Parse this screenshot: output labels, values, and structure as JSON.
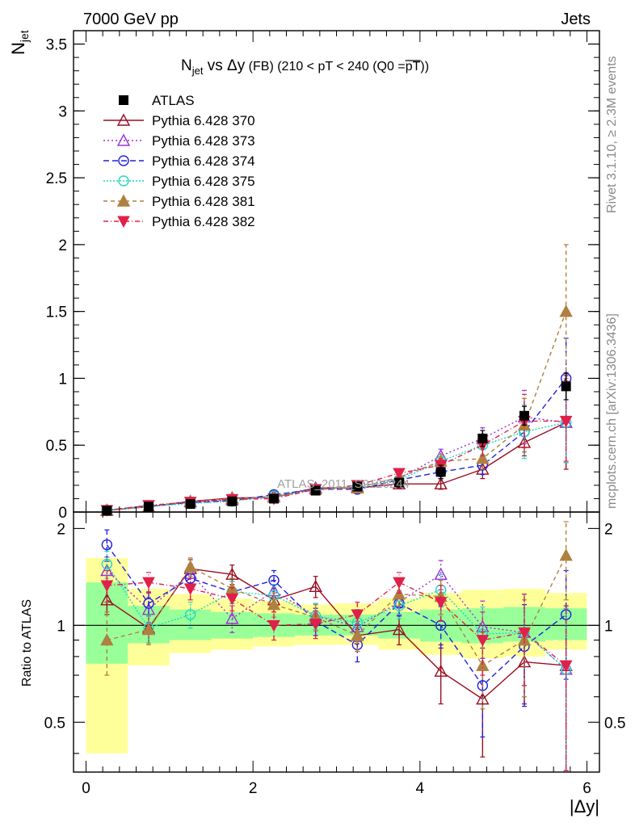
{
  "header": {
    "left": "7000 GeV pp",
    "right": "Jets"
  },
  "side_labels": {
    "rivet": "Rivet 3.1.10, ≥ 2.3M events",
    "mcplots": "mcplots.cern.ch [arXiv:1306.3436]"
  },
  "watermark": "ATLAS_2011_S9126244",
  "colors": {
    "atlas": "#000000",
    "p370": "#990f22",
    "p373": "#9b30d8",
    "p374": "#2020dd",
    "p375": "#20d8c0",
    "p381": "#b08040",
    "p382": "#e0204a",
    "band_inner": "#99ff99",
    "band_outer": "#ffff99"
  },
  "chart_data": [
    {
      "type": "line",
      "panel": "main",
      "title_parts": {
        "prefix": "N",
        "sub": "jet",
        "mid": " vs Δy",
        "detail": " (FB)  (210 < pT < 240 (Q0 =",
        "over": "pT",
        "close": "))"
      },
      "ylabel": {
        "main": "N",
        "sub": "jet"
      },
      "xlim": [
        -0.15,
        6.15
      ],
      "ylim": [
        0,
        3.6
      ],
      "yticks": [
        "0",
        "0.5",
        "1",
        "1.5",
        "2",
        "2.5",
        "3",
        "3.5"
      ],
      "x": [
        0.25,
        0.75,
        1.25,
        1.75,
        2.25,
        2.75,
        3.25,
        3.75,
        4.25,
        4.75,
        5.25,
        5.75
      ],
      "series": [
        {
          "name": "ATLAS",
          "key": "atlas",
          "marker": "square",
          "values": [
            0.01,
            0.04,
            0.06,
            0.08,
            0.1,
            0.16,
            0.19,
            0.22,
            0.3,
            0.55,
            0.72,
            0.94
          ],
          "errors": [
            0.005,
            0.01,
            0.01,
            0.01,
            0.01,
            0.02,
            0.02,
            0.03,
            0.05,
            0.06,
            0.07,
            0.1
          ]
        },
        {
          "name": "Pythia 6.428 370",
          "key": "p370",
          "marker": "triangle-open",
          "dash": "",
          "values": [
            0.013,
            0.04,
            0.08,
            0.105,
            0.11,
            0.18,
            0.18,
            0.21,
            0.21,
            0.32,
            0.52,
            0.67
          ],
          "errors": [
            0.005,
            0.01,
            0.01,
            0.01,
            0.02,
            0.02,
            0.02,
            0.03,
            0.04,
            0.07,
            0.1,
            0.35
          ]
        },
        {
          "name": "Pythia 6.428 373",
          "key": "p373",
          "marker": "triangle-open",
          "dash": "2,3",
          "values": [
            0.012,
            0.04,
            0.075,
            0.09,
            0.12,
            0.18,
            0.19,
            0.25,
            0.42,
            0.55,
            0.71,
            0.67
          ],
          "errors": [
            0.005,
            0.01,
            0.01,
            0.01,
            0.02,
            0.02,
            0.02,
            0.03,
            0.05,
            0.08,
            0.2,
            0.3
          ]
        },
        {
          "name": "Pythia 6.428 374",
          "key": "p374",
          "marker": "circle-open",
          "dash": "7,4",
          "values": [
            0.015,
            0.045,
            0.07,
            0.085,
            0.13,
            0.17,
            0.17,
            0.24,
            0.3,
            0.35,
            0.6,
            1.0
          ],
          "errors": [
            0.005,
            0.01,
            0.01,
            0.01,
            0.02,
            0.02,
            0.02,
            0.03,
            0.05,
            0.07,
            0.15,
            0.3
          ]
        },
        {
          "name": "Pythia 6.428 375",
          "key": "p375",
          "marker": "circle-open",
          "dash": "2,2",
          "values": [
            0.013,
            0.04,
            0.065,
            0.08,
            0.12,
            0.17,
            0.19,
            0.24,
            0.38,
            0.5,
            0.6,
            0.67
          ],
          "errors": [
            0.005,
            0.01,
            0.01,
            0.01,
            0.02,
            0.02,
            0.02,
            0.03,
            0.05,
            0.07,
            0.2,
            0.3
          ]
        },
        {
          "name": "Pythia 6.428 381",
          "key": "p381",
          "marker": "triangle",
          "dash": "5,4",
          "values": [
            0.01,
            0.04,
            0.08,
            0.1,
            0.11,
            0.17,
            0.18,
            0.26,
            0.38,
            0.4,
            0.65,
            1.5
          ],
          "errors": [
            0.005,
            0.01,
            0.01,
            0.01,
            0.02,
            0.02,
            0.02,
            0.03,
            0.05,
            0.08,
            0.2,
            0.5
          ]
        },
        {
          "name": "Pythia 6.428 382",
          "key": "p382",
          "marker": "triangle-down",
          "dash": "6,3,1,3",
          "values": [
            0.013,
            0.05,
            0.075,
            0.095,
            0.1,
            0.17,
            0.2,
            0.29,
            0.35,
            0.5,
            0.68,
            0.68
          ],
          "errors": [
            0.005,
            0.01,
            0.01,
            0.01,
            0.02,
            0.02,
            0.02,
            0.03,
            0.05,
            0.08,
            0.2,
            0.3
          ]
        }
      ]
    },
    {
      "type": "line",
      "panel": "ratio",
      "ylabel": "Ratio to ATLAS",
      "xlabel": "|Δy|",
      "xlim": [
        -0.15,
        6.15
      ],
      "ylim": [
        0.35,
        2.25
      ],
      "yticks": [
        "0.5",
        "1",
        "2"
      ],
      "xticks": [
        "0",
        "2",
        "4",
        "6"
      ],
      "bands": {
        "edges": [
          0,
          0.5,
          1.0,
          1.5,
          2.0,
          2.5,
          3.0,
          3.5,
          4.0,
          4.5,
          5.0,
          5.5,
          6.0
        ],
        "inner_lo": [
          0.76,
          0.88,
          0.9,
          0.91,
          0.92,
          0.93,
          0.93,
          0.91,
          0.89,
          0.88,
          0.89,
          0.9
        ],
        "inner_hi": [
          1.36,
          1.15,
          1.12,
          1.1,
          1.09,
          1.08,
          1.08,
          1.1,
          1.12,
          1.13,
          1.14,
          1.13
        ],
        "outer_lo": [
          0.4,
          0.75,
          0.82,
          0.84,
          0.86,
          0.87,
          0.87,
          0.84,
          0.81,
          0.79,
          0.8,
          0.84
        ],
        "outer_hi": [
          1.62,
          1.3,
          1.25,
          1.21,
          1.19,
          1.16,
          1.17,
          1.21,
          1.26,
          1.29,
          1.3,
          1.26
        ]
      },
      "x": [
        0.25,
        0.75,
        1.25,
        1.75,
        2.25,
        2.75,
        3.25,
        3.75,
        4.25,
        4.75,
        5.25,
        5.75
      ],
      "series": [
        {
          "key": "p370",
          "marker": "triangle-open",
          "dash": "",
          "values": [
            1.2,
            0.98,
            1.5,
            1.44,
            1.2,
            1.32,
            0.93,
            0.97,
            0.72,
            0.59,
            0.77,
            0.75
          ],
          "errors": [
            0.12,
            0.1,
            0.1,
            0.1,
            0.1,
            0.1,
            0.1,
            0.1,
            0.15,
            0.2,
            0.2,
            0.4
          ]
        },
        {
          "key": "p373",
          "marker": "triangle-open",
          "dash": "2,3",
          "values": [
            1.48,
            1.12,
            1.45,
            1.05,
            1.28,
            1.07,
            0.99,
            1.18,
            1.44,
            0.99,
            0.95,
            0.73
          ],
          "errors": [
            0.15,
            0.1,
            0.1,
            0.1,
            0.1,
            0.1,
            0.1,
            0.1,
            0.15,
            0.2,
            0.3,
            0.4
          ]
        },
        {
          "key": "p374",
          "marker": "circle-open",
          "dash": "7,4",
          "values": [
            1.78,
            1.17,
            1.4,
            1.27,
            1.38,
            1.03,
            0.87,
            1.17,
            1.0,
            0.65,
            0.86,
            1.08
          ],
          "errors": [
            0.2,
            0.1,
            0.1,
            0.1,
            0.1,
            0.1,
            0.1,
            0.1,
            0.15,
            0.2,
            0.3,
            0.4
          ]
        },
        {
          "key": "p375",
          "marker": "circle-open",
          "dash": "2,2",
          "values": [
            1.55,
            0.98,
            1.08,
            1.27,
            1.24,
            1.07,
            1.02,
            1.15,
            1.29,
            0.94,
            0.95,
            0.73
          ],
          "errors": [
            0.15,
            0.1,
            0.1,
            0.1,
            0.1,
            0.1,
            0.1,
            0.1,
            0.15,
            0.2,
            0.3,
            0.4
          ]
        },
        {
          "key": "p381",
          "marker": "triangle",
          "dash": "5,4",
          "values": [
            0.9,
            0.97,
            1.52,
            1.3,
            1.16,
            1.06,
            0.93,
            1.25,
            1.23,
            0.75,
            0.9,
            1.65
          ],
          "errors": [
            0.2,
            0.1,
            0.1,
            0.1,
            0.1,
            0.1,
            0.1,
            0.1,
            0.15,
            0.2,
            0.3,
            0.45
          ]
        },
        {
          "key": "p382",
          "marker": "triangle-down",
          "dash": "6,3,1,3",
          "values": [
            1.33,
            1.36,
            1.3,
            1.21,
            1.0,
            1.01,
            1.08,
            1.36,
            1.18,
            0.9,
            0.95,
            0.75
          ],
          "errors": [
            0.15,
            0.1,
            0.1,
            0.1,
            0.1,
            0.1,
            0.1,
            0.1,
            0.15,
            0.2,
            0.3,
            0.4
          ]
        }
      ]
    }
  ]
}
